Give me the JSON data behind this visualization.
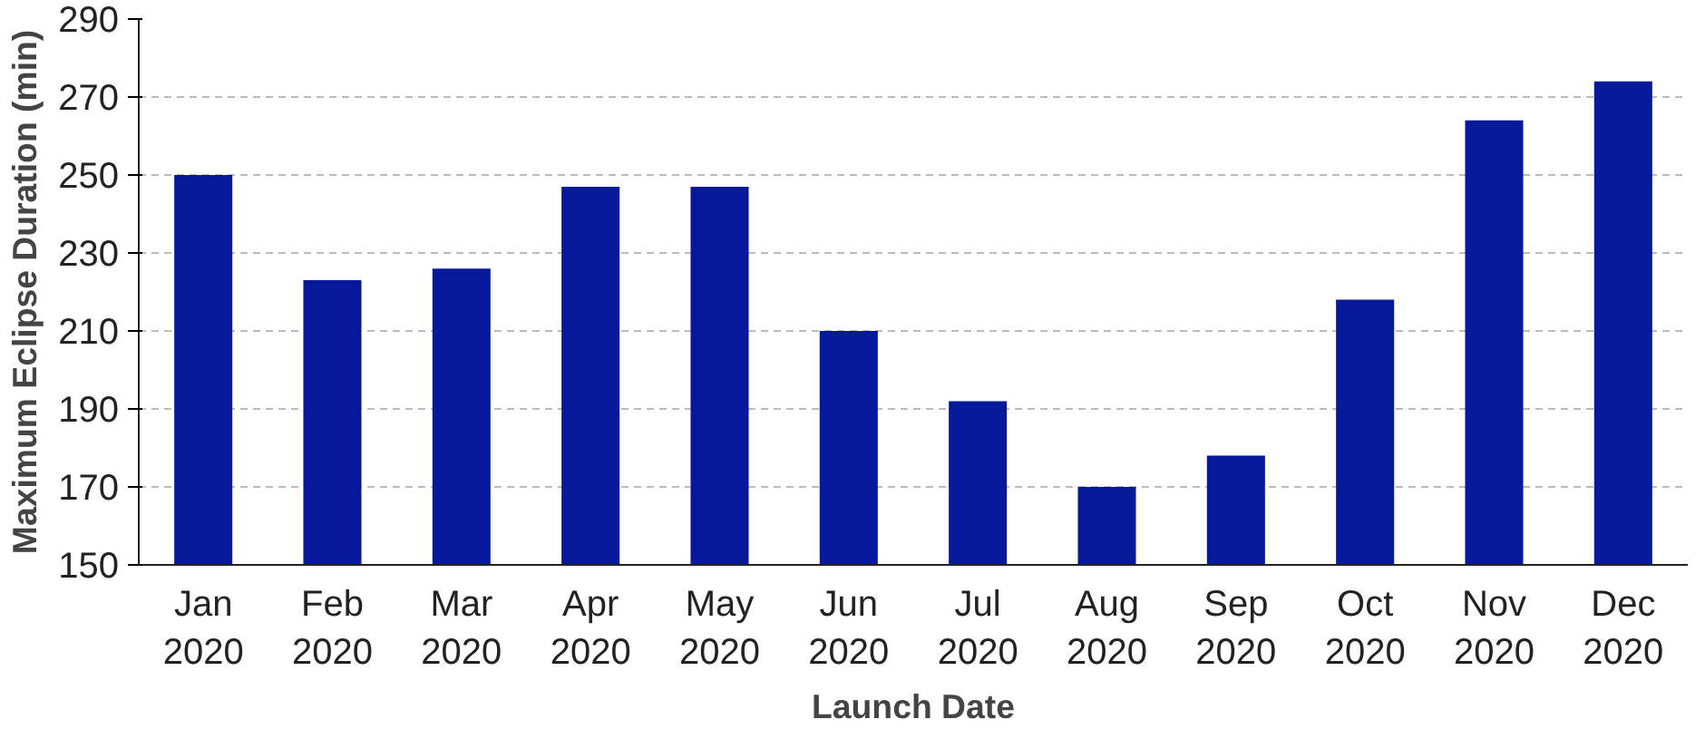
{
  "chart_data": {
    "type": "bar",
    "xlabel": "Launch Date",
    "ylabel": "Maximum Eclipse Duration (min)",
    "categories": [
      "Jan\n2020",
      "Feb\n2020",
      "Mar\n2020",
      "Apr\n2020",
      "May\n2020",
      "Jun\n2020",
      "Jul\n2020",
      "Aug\n2020",
      "Sep\n2020",
      "Oct\n2020",
      "Nov\n2020",
      "Dec\n2020"
    ],
    "values": [
      250,
      223,
      226,
      247,
      247,
      210,
      192,
      170,
      178,
      218,
      264,
      274
    ],
    "color": "#06199a",
    "ylim": [
      150,
      290
    ],
    "yticks": [
      150,
      170,
      190,
      210,
      230,
      250,
      270,
      290
    ],
    "grid": "y"
  }
}
